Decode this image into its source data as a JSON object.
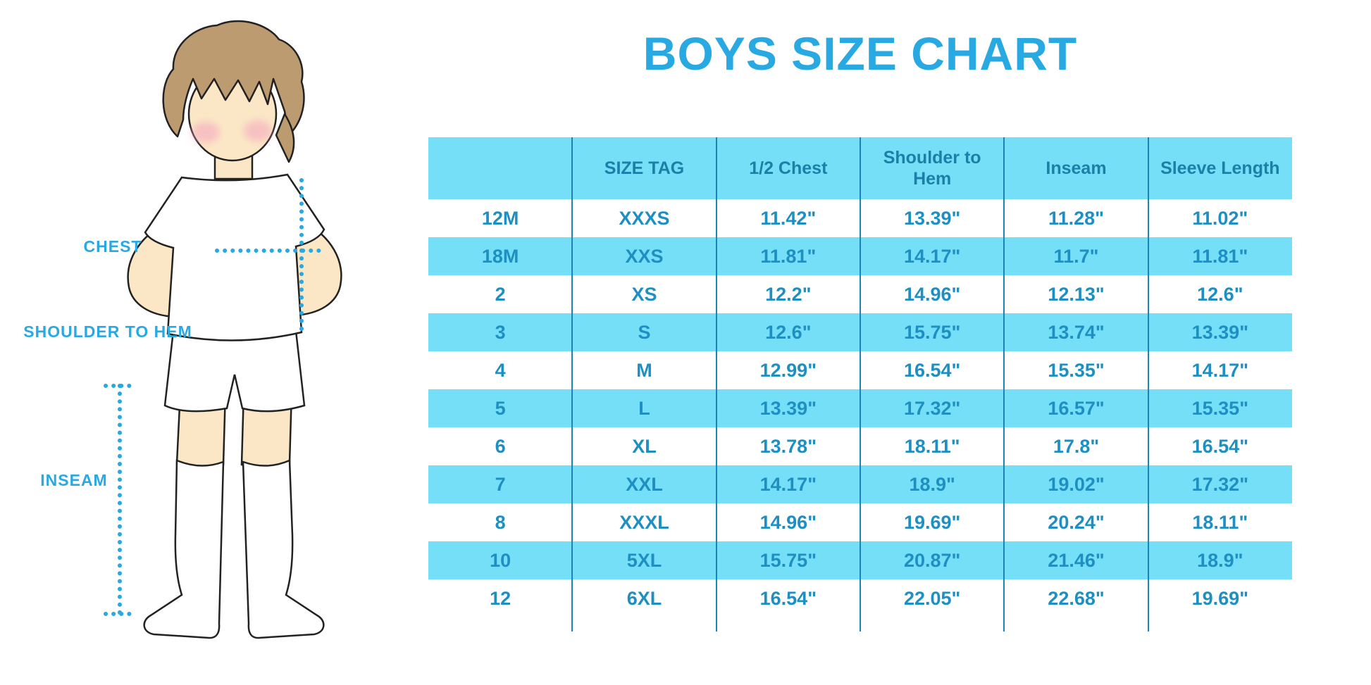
{
  "title": "BOYS SIZE CHART",
  "illustration": {
    "labels": {
      "chest": "CHEST",
      "shoulder_to_hem": "SHOULDER TO HEM",
      "inseam": "INSEAM"
    }
  },
  "chart_data": {
    "type": "table",
    "title": "BOYS SIZE CHART",
    "columns": [
      "",
      "SIZE TAG",
      "1/2 Chest",
      "Shoulder to Hem",
      "Inseam",
      "Sleeve Length"
    ],
    "rows": [
      [
        "12M",
        "XXXS",
        "11.42\"",
        "13.39\"",
        "11.28\"",
        "11.02\""
      ],
      [
        "18M",
        "XXS",
        "11.81\"",
        "14.17\"",
        "11.7\"",
        "11.81\""
      ],
      [
        "2",
        "XS",
        "12.2\"",
        "14.96\"",
        "12.13\"",
        "12.6\""
      ],
      [
        "3",
        "S",
        "12.6\"",
        "15.75\"",
        "13.74\"",
        "13.39\""
      ],
      [
        "4",
        "M",
        "12.99\"",
        "16.54\"",
        "15.35\"",
        "14.17\""
      ],
      [
        "5",
        "L",
        "13.39\"",
        "17.32\"",
        "16.57\"",
        "15.35\""
      ],
      [
        "6",
        "XL",
        "13.78\"",
        "18.11\"",
        "17.8\"",
        "16.54\""
      ],
      [
        "7",
        "XXL",
        "14.17\"",
        "18.9\"",
        "19.02\"",
        "17.32\""
      ],
      [
        "8",
        "XXXL",
        "14.96\"",
        "19.69\"",
        "20.24\"",
        "18.11\""
      ],
      [
        "10",
        "5XL",
        "15.75\"",
        "20.87\"",
        "21.46\"",
        "18.9\""
      ],
      [
        "12",
        "6XL",
        "16.54\"",
        "22.05\"",
        "22.68\"",
        "19.69\""
      ]
    ],
    "units": "inches",
    "row_striping": [
      "white",
      "cyan-alternating"
    ]
  },
  "colors": {
    "accent_blue": "#29A9E1",
    "row_highlight": "#76DFF8",
    "header_text": "#1B7FA8",
    "cell_text": "#1E8FC2",
    "divider": "#1A84B4",
    "skin": "#FBE7C6",
    "hair": "#BD9B70",
    "blush": "#F5A8C0"
  }
}
